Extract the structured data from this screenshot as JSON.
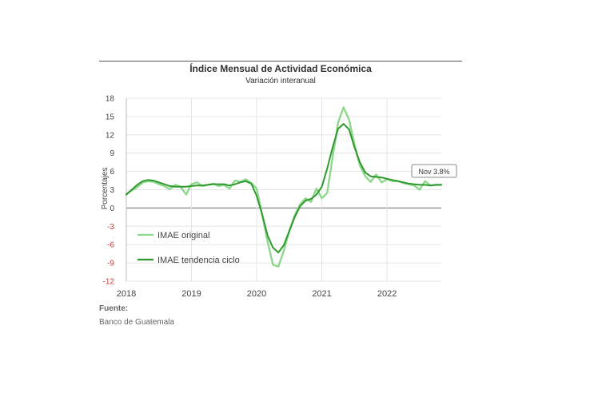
{
  "chart_data": {
    "type": "line",
    "title": "Índice Mensual de Actividad Económica",
    "subtitle": "Variación interanual",
    "ylabel": "Porcentajes",
    "xlabel": "",
    "ylim": [
      -12,
      18
    ],
    "yticks": [
      18,
      15,
      12,
      9,
      6,
      3,
      0,
      -3,
      -6,
      -9,
      -12
    ],
    "xlim": [
      2018,
      2022.833
    ],
    "xticks": [
      2018,
      2019,
      2020,
      2021,
      2022
    ],
    "xtick_labels": [
      "2018",
      "2019",
      "2020",
      "2021",
      "2022"
    ],
    "grid": true,
    "legend_position": "lower-left",
    "series": [
      {
        "name": "IMAE original",
        "color": "#8ed88e",
        "x": [
          2018.0,
          2018.083,
          2018.167,
          2018.25,
          2018.333,
          2018.417,
          2018.5,
          2018.583,
          2018.667,
          2018.75,
          2018.833,
          2018.917,
          2019.0,
          2019.083,
          2019.167,
          2019.25,
          2019.333,
          2019.417,
          2019.5,
          2019.583,
          2019.667,
          2019.75,
          2019.833,
          2019.917,
          2020.0,
          2020.083,
          2020.167,
          2020.25,
          2020.333,
          2020.417,
          2020.5,
          2020.583,
          2020.667,
          2020.75,
          2020.833,
          2020.917,
          2021.0,
          2021.083,
          2021.167,
          2021.25,
          2021.333,
          2021.417,
          2021.5,
          2021.583,
          2021.667,
          2021.75,
          2021.833,
          2021.917,
          2022.0,
          2022.083,
          2022.167,
          2022.25,
          2022.333,
          2022.417,
          2022.5,
          2022.583,
          2022.667,
          2022.75,
          2022.833
        ],
        "y": [
          2.3,
          2.9,
          3.4,
          4.2,
          4.4,
          4.3,
          3.9,
          3.6,
          3.1,
          3.8,
          3.5,
          2.2,
          3.9,
          4.2,
          3.6,
          3.8,
          4.0,
          3.6,
          3.8,
          3.2,
          4.5,
          4.3,
          4.7,
          4.1,
          3.2,
          -1.0,
          -5.5,
          -9.3,
          -9.6,
          -7.0,
          -3.8,
          -1.2,
          0.6,
          1.6,
          1.0,
          3.2,
          1.6,
          2.5,
          8.5,
          14.0,
          16.5,
          14.5,
          10.5,
          7.0,
          5.2,
          4.3,
          5.5,
          4.2,
          4.7,
          4.4,
          4.4,
          4.1,
          3.9,
          3.7,
          3.0,
          4.4,
          3.7,
          3.8,
          3.8
        ]
      },
      {
        "name": "IMAE tendencia ciclo",
        "color": "#2e9a2e",
        "x": [
          2018.0,
          2018.083,
          2018.167,
          2018.25,
          2018.333,
          2018.417,
          2018.5,
          2018.583,
          2018.667,
          2018.75,
          2018.833,
          2018.917,
          2019.0,
          2019.083,
          2019.167,
          2019.25,
          2019.333,
          2019.417,
          2019.5,
          2019.583,
          2019.667,
          2019.75,
          2019.833,
          2019.917,
          2020.0,
          2020.083,
          2020.167,
          2020.25,
          2020.333,
          2020.417,
          2020.5,
          2020.583,
          2020.667,
          2020.75,
          2020.833,
          2020.917,
          2021.0,
          2021.083,
          2021.167,
          2021.25,
          2021.333,
          2021.417,
          2021.5,
          2021.583,
          2021.667,
          2021.75,
          2021.833,
          2021.917,
          2022.0,
          2022.083,
          2022.167,
          2022.25,
          2022.333,
          2022.417,
          2022.5,
          2022.583,
          2022.667,
          2022.75,
          2022.833
        ],
        "y": [
          2.2,
          3.0,
          3.8,
          4.4,
          4.6,
          4.5,
          4.2,
          3.9,
          3.6,
          3.5,
          3.5,
          3.5,
          3.6,
          3.7,
          3.7,
          3.8,
          3.9,
          3.9,
          3.9,
          3.7,
          3.9,
          4.2,
          4.4,
          4.0,
          2.0,
          -1.0,
          -4.5,
          -6.5,
          -7.3,
          -6.1,
          -3.8,
          -1.5,
          0.3,
          1.2,
          1.5,
          2.2,
          3.5,
          6.5,
          10.0,
          13.0,
          13.8,
          12.9,
          10.0,
          7.5,
          5.8,
          5.2,
          5.1,
          5.0,
          4.8,
          4.6,
          4.4,
          4.2,
          4.0,
          3.9,
          3.8,
          3.8,
          3.7,
          3.8,
          3.8
        ]
      }
    ],
    "annotation": {
      "text": "Nov 3.8%",
      "x": 2022.833,
      "y": 3.8
    }
  },
  "source": {
    "label": "Fuente:",
    "text": "Banco de Guatemala"
  }
}
